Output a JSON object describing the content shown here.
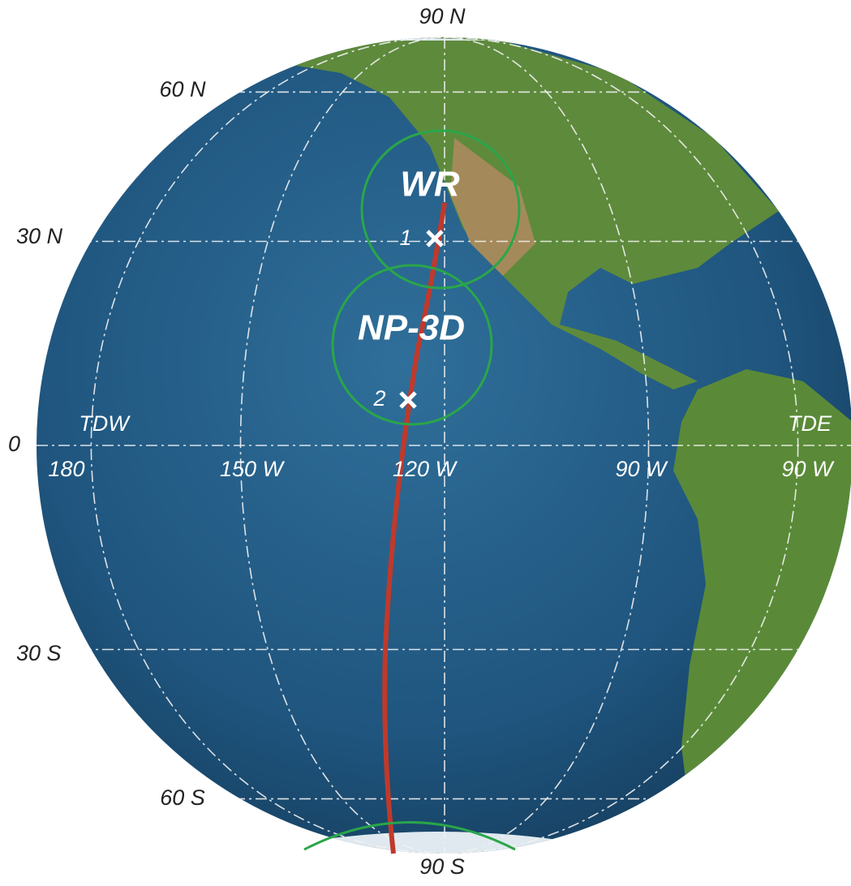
{
  "latitude_labels": [
    "90 N",
    "60 N",
    "30 N",
    "0",
    "30 S",
    "60 S",
    "90 S"
  ],
  "longitude_labels": [
    "180",
    "150 W",
    "120 W",
    "90 W",
    "90 W"
  ],
  "dateline_labels": [
    "TDW",
    "TDE"
  ],
  "zones": [
    "WR",
    "NP-3D"
  ],
  "points": [
    "1",
    "2"
  ]
}
